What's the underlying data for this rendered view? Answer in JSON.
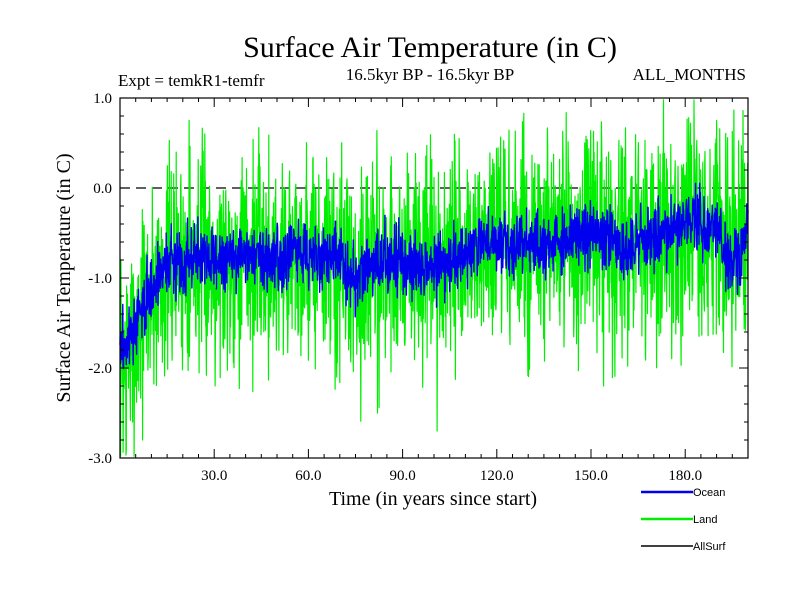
{
  "chart_data": {
    "type": "line",
    "title": "Surface Air Temperature (in C)",
    "subtitle_left": "Expt = temkR1-temfr",
    "subtitle_center": "16.5kyr BP - 16.5kyr BP",
    "subtitle_right": "ALL_MONTHS",
    "xlabel": "Time (in years since start)",
    "ylabel": "Surface Air Temperature (in C)",
    "xlim": [
      0,
      200
    ],
    "ylim": [
      -3.0,
      1.0
    ],
    "x_ticks": [
      30,
      60,
      90,
      120,
      150,
      180
    ],
    "x_tick_labels": [
      "30.0",
      "60.0",
      "90.0",
      "120.0",
      "150.0",
      "180.0"
    ],
    "y_ticks": [
      -3.0,
      -2.0,
      -1.0,
      0.0,
      1.0
    ],
    "y_tick_labels": [
      "-3.0",
      "-2.0",
      "-1.0",
      "0.0",
      "1.0"
    ],
    "reference_line": {
      "y": 0.0,
      "style": "dashed"
    },
    "legend_position": "bottom-right",
    "series": [
      {
        "name": "Land",
        "color": "#00ee00",
        "seed": 7,
        "noise_amplitude": 0.6,
        "x": [
          0,
          2,
          5,
          8,
          12,
          15,
          20,
          25,
          30,
          40,
          50,
          60,
          70,
          75,
          80,
          90,
          100,
          110,
          120,
          130,
          140,
          150,
          160,
          170,
          180,
          190,
          195,
          200
        ],
        "values": [
          -2.0,
          -1.9,
          -1.6,
          -1.3,
          -1.05,
          -0.9,
          -0.8,
          -0.78,
          -0.8,
          -0.75,
          -0.8,
          -0.72,
          -0.85,
          -1.0,
          -0.85,
          -0.8,
          -0.9,
          -0.75,
          -0.6,
          -0.7,
          -0.65,
          -0.55,
          -0.7,
          -0.6,
          -0.4,
          -0.5,
          -0.7,
          -0.45
        ],
        "highlights": [
          {
            "x": 2,
            "value": -2.9
          },
          {
            "x": 4,
            "value": -2.6
          },
          {
            "x": 22,
            "value": 0.75
          },
          {
            "x": 27,
            "value": 0.6
          },
          {
            "x": 69,
            "value": -2.1
          },
          {
            "x": 82,
            "value": -2.5
          },
          {
            "x": 101,
            "value": -2.7
          },
          {
            "x": 108,
            "value": 0.55
          },
          {
            "x": 148,
            "value": 0.5
          },
          {
            "x": 154,
            "value": -2.2
          },
          {
            "x": 190,
            "value": 0.75
          },
          {
            "x": 193,
            "value": 0.45
          }
        ]
      },
      {
        "name": "Ocean",
        "color": "#0000ee",
        "seed": 3,
        "noise_amplitude": 0.18,
        "x": [
          0,
          2,
          5,
          8,
          12,
          15,
          20,
          25,
          30,
          40,
          50,
          60,
          70,
          75,
          80,
          90,
          100,
          110,
          120,
          130,
          140,
          150,
          160,
          170,
          180,
          190,
          195,
          200
        ],
        "values": [
          -1.8,
          -1.7,
          -1.55,
          -1.25,
          -1.0,
          -0.85,
          -0.78,
          -0.75,
          -0.78,
          -0.72,
          -0.78,
          -0.7,
          -0.82,
          -1.0,
          -0.85,
          -0.78,
          -0.88,
          -0.72,
          -0.58,
          -0.68,
          -0.62,
          -0.45,
          -0.65,
          -0.55,
          -0.35,
          -0.45,
          -0.9,
          -0.5
        ]
      },
      {
        "name": "AllSurf",
        "color": "#000000",
        "x": [],
        "values": []
      }
    ]
  }
}
